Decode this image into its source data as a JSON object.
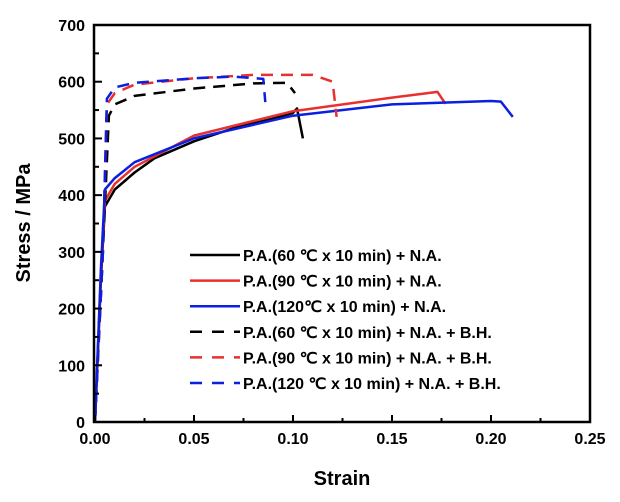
{
  "chart_data": {
    "type": "line",
    "title": "",
    "xlabel": "Strain",
    "ylabel": "Stress / MPa",
    "xlim": [
      0,
      0.25
    ],
    "ylim": [
      0,
      700
    ],
    "xticks": [
      "0.00",
      "0.05",
      "0.10",
      "0.15",
      "0.20",
      "0.25"
    ],
    "xtick_values": [
      0,
      0.05,
      0.1,
      0.15,
      0.2,
      0.25
    ],
    "yticks": [
      "0",
      "100",
      "200",
      "300",
      "400",
      "500",
      "600",
      "700"
    ],
    "ytick_values": [
      0,
      100,
      200,
      300,
      400,
      500,
      600,
      700
    ],
    "grid": false,
    "legend_position": "bottom-right",
    "series": [
      {
        "name": "P.A.(60 ℃ x 10 min) + N.A.",
        "color": "#000000",
        "dash": false,
        "x": [
          0,
          0.003,
          0.005,
          0.01,
          0.02,
          0.03,
          0.05,
          0.07,
          0.09,
          0.1,
          0.102,
          0.105
        ],
        "y": [
          0,
          250,
          380,
          410,
          440,
          465,
          495,
          518,
          535,
          545,
          553,
          500
        ]
      },
      {
        "name": "P.A.(90 ℃ x 10 min) + N.A.",
        "color": "#e8312f",
        "dash": false,
        "x": [
          0,
          0.003,
          0.005,
          0.01,
          0.02,
          0.05,
          0.1,
          0.15,
          0.173,
          0.177
        ],
        "y": [
          0,
          260,
          390,
          420,
          450,
          505,
          548,
          572,
          582,
          561
        ]
      },
      {
        "name": "P.A.(120℃ x 10 min) + N.A.",
        "color": "#0a1fe0",
        "dash": false,
        "x": [
          0,
          0.003,
          0.005,
          0.01,
          0.02,
          0.05,
          0.1,
          0.15,
          0.2,
          0.205,
          0.211
        ],
        "y": [
          0,
          270,
          410,
          430,
          458,
          500,
          540,
          560,
          566,
          565,
          538
        ]
      },
      {
        "name": "P.A.(60 ℃ x 10 min) + N.A. + B.H.",
        "color": "#000000",
        "dash": true,
        "x": [
          0,
          0.004,
          0.007,
          0.01,
          0.02,
          0.05,
          0.08,
          0.097,
          0.101
        ],
        "y": [
          0,
          300,
          540,
          560,
          575,
          588,
          597,
          598,
          580
        ]
      },
      {
        "name": "P.A.(90 ℃ x 10 min) + N.A. + B.H.",
        "color": "#e8312f",
        "dash": true,
        "x": [
          0,
          0.004,
          0.006,
          0.01,
          0.02,
          0.05,
          0.08,
          0.11,
          0.12,
          0.122
        ],
        "y": [
          0,
          300,
          560,
          580,
          595,
          606,
          612,
          612,
          600,
          538
        ]
      },
      {
        "name": "P.A.(120 ℃ x 10 min) + N.A. + B.H.",
        "color": "#0a1fe0",
        "dash": true,
        "x": [
          0,
          0.004,
          0.006,
          0.01,
          0.02,
          0.05,
          0.07,
          0.085,
          0.086
        ],
        "y": [
          0,
          300,
          570,
          590,
          598,
          606,
          609,
          605,
          564
        ]
      }
    ]
  }
}
